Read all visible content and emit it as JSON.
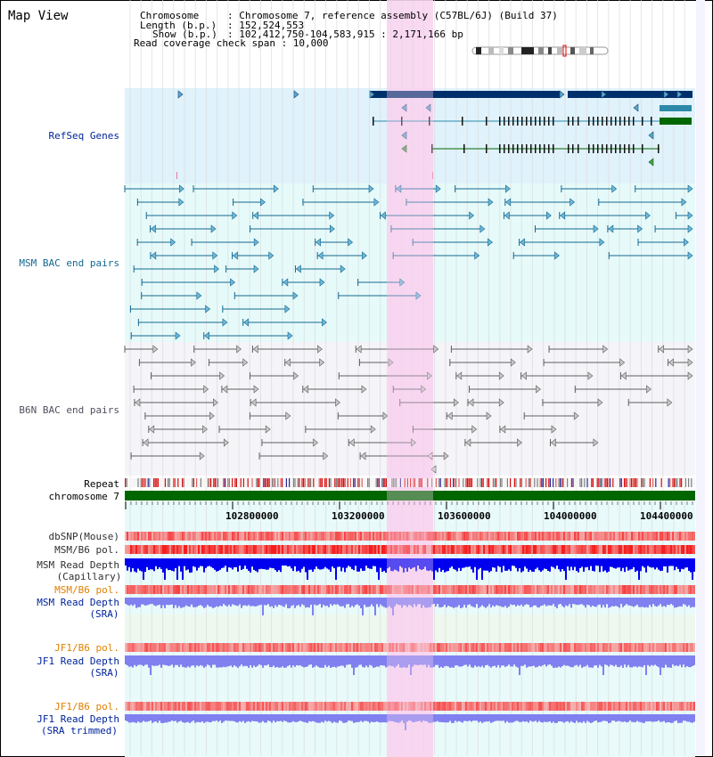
{
  "page": {
    "title": "Map View"
  },
  "info": {
    "chromosome_key": "Chromosome",
    "chromosome_val": ": Chromosome 7, reference assembly (C57BL/6J) (Build 37)",
    "length_key": "Length (b.p.)",
    "length_val": ": 152,524,553",
    "show_key": "Show (b.p.)",
    "show_val": ": 102,412,750-104,583,915 : 2,171,166 bp",
    "coverage": "Read coverage check span : 10,000"
  },
  "tracks": {
    "refseq": "RefSeq Genes",
    "msm_bac": "MSM BAC end pairs",
    "b6n_bac": "B6N BAC end pairs",
    "repeat": "Repeat",
    "chromosome": "chromosome 7",
    "dbsnp": "dbSNP(Mouse)",
    "msm_b6_pol": "MSM/B6 pol.",
    "msm_read_depth_cap_1": "MSM Read Depth",
    "msm_read_depth_cap_2": "(Capillary)",
    "msm_b6_pol2": "MSM/B6 pol.",
    "msm_read_depth_sra_1": "MSM Read Depth",
    "msm_read_depth_sra_2": "(SRA)",
    "jf1_b6_pol": "JF1/B6 pol.",
    "jf1_read_depth_sra_1": "JF1 Read Depth",
    "jf1_read_depth_sra_2": "(SRA)",
    "jf1_b6_pol2": "JF1/B6 pol.",
    "jf1_read_depth_trim_1": "JF1 Read Depth",
    "jf1_read_depth_trim_2": "(SRA trimmed)"
  },
  "axis": {
    "ticks": [
      "102800000",
      "103200000",
      "103600000",
      "104000000",
      "104400000"
    ]
  },
  "colors": {
    "refseq_bg": "#e0f2fb",
    "msm_bg": "#e6fafa",
    "b6n_bg": "#f4f4f9",
    "highlight": "#f8d4f0",
    "gene_dark": "#00306c",
    "gene_teal": "#2c8aa8",
    "gene_green": "#006600",
    "msm_line": "#146890",
    "b6n_line": "#606060",
    "chrom_green": "#006600",
    "label_blue": "#00239c",
    "label_orange": "#e08000",
    "label_gray": "#303030",
    "depth_blue": "#0000ee",
    "depth_lavender": "#8080f0"
  }
}
